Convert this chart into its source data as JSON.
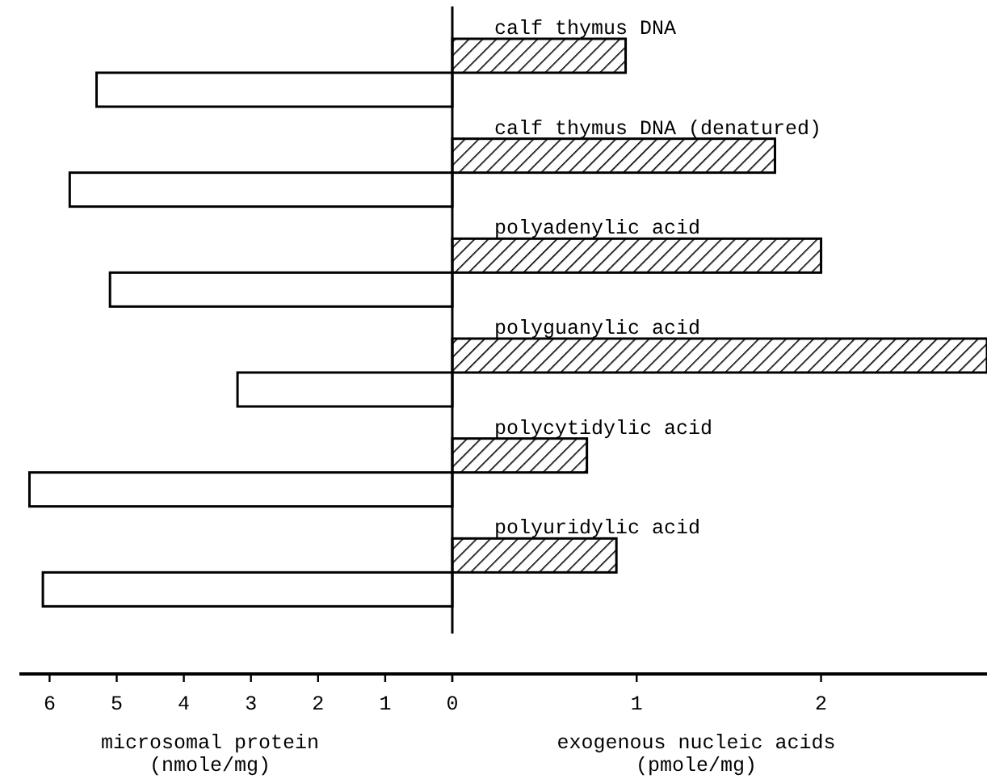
{
  "chart_data": [
    {
      "type": "bar",
      "orientation": "horizontal",
      "categories": [
        null,
        null,
        null,
        null,
        null,
        null
      ],
      "values": [
        5.3,
        5.7,
        5.1,
        3.2,
        6.3,
        6.1
      ],
      "color": "#ffffff",
      "xlim": [
        6.45,
        0
      ],
      "xticks": [
        6,
        5,
        4,
        3,
        2,
        1,
        {
          "value": 0,
          "label": null
        }
      ],
      "xlabel": "microsomal protein\n(nmole/mg)"
    },
    {
      "type": "bar",
      "orientation": "horizontal",
      "categories": [
        "calf thymus DNA",
        "calf thymus DNA (denatured)",
        "polyadenylic acid",
        "polyguanylic acid",
        "polycytidylic acid",
        "polyuridylic acid"
      ],
      "values": [
        0.94,
        1.75,
        2.0,
        2.9,
        0.73,
        0.89
      ],
      "color": "#000000",
      "xlim": [
        0,
        2.9
      ],
      "xticks": [
        0,
        1,
        2
      ],
      "xlabel": "exogenous nucleic acids\n(pmole/mg)"
    }
  ]
}
